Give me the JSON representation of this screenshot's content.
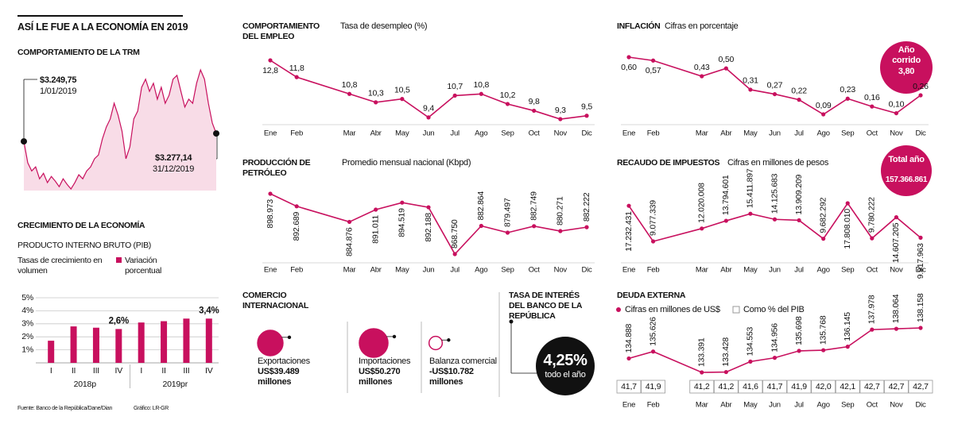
{
  "title": "ASÍ LE FUE A LA ECONOMÍA EN 2019",
  "source": "Fuente: Banco de la República/Dane/Dian",
  "credit": "Gráfico: LR-GR",
  "tasa": {
    "title": "TASA DE INTERÉS DEL BANCO DE LA REPÚBLICA",
    "value": "4,25%",
    "note": "todo el año"
  },
  "chart_data": [
    {
      "type": "area",
      "title": "COMPORTAMIENTO DE LA TRM",
      "color": "#c8105e",
      "fill": "#f8dce7",
      "x": [
        "1/01/2019",
        null,
        null,
        null,
        null,
        null,
        null,
        null,
        null,
        null,
        null,
        null,
        null,
        null,
        null,
        null,
        null,
        null,
        null,
        null,
        null,
        null,
        null,
        null,
        null,
        null,
        null,
        null,
        null,
        null,
        null,
        null,
        null,
        null,
        null,
        null,
        null,
        null,
        null,
        null,
        null,
        null,
        null,
        null,
        null,
        null,
        null,
        null,
        null,
        "31/12/2019"
      ],
      "values": [
        3249.75,
        3176,
        3148,
        3162,
        3121,
        3140,
        3108,
        3129,
        3113,
        3094,
        3121,
        3102,
        3086,
        3108,
        3135,
        3121,
        3148,
        3162,
        3190,
        3203,
        3258,
        3299,
        3327,
        3381,
        3340,
        3285,
        3190,
        3231,
        3327,
        3354,
        3436,
        3464,
        3422,
        3450,
        3395,
        3436,
        3381,
        3409,
        3464,
        3477,
        3422,
        3368,
        3395,
        3381,
        3450,
        3496,
        3464,
        3381,
        3313,
        3277.14
      ],
      "value_labels": [
        "$3.249,75",
        null,
        null,
        null,
        null,
        null,
        null,
        null,
        null,
        null,
        null,
        null,
        null,
        null,
        null,
        null,
        null,
        null,
        null,
        null,
        null,
        null,
        null,
        null,
        null,
        null,
        null,
        null,
        null,
        null,
        null,
        null,
        null,
        null,
        null,
        null,
        null,
        null,
        null,
        null,
        null,
        null,
        null,
        null,
        null,
        null,
        null,
        null,
        null,
        "$3.277,14"
      ]
    },
    {
      "type": "bar",
      "title": "CRECIMIENTO DE LA ECONOMÍA",
      "subtitle": "PRODUCTO INTERNO BRUTO (PIB)",
      "y_label": "Tasas de crecimiento en volumen",
      "categories": [
        "I",
        "II",
        "III",
        "IV",
        "I",
        "II",
        "III",
        "IV"
      ],
      "groups": [
        "2018p",
        "2019pr"
      ],
      "series": [
        {
          "name": "Variación porcentual",
          "color": "#c8105e",
          "values": [
            1.7,
            2.8,
            2.7,
            2.6,
            3.1,
            3.2,
            3.4,
            3.4
          ],
          "value_labels": [
            null,
            null,
            null,
            "2,6%",
            null,
            null,
            null,
            "3,4%"
          ]
        }
      ],
      "ylim": [
        0,
        5
      ],
      "yticks": [
        {
          "value": 1,
          "label": "1%"
        },
        {
          "value": 2,
          "label": "2%"
        },
        {
          "value": 3,
          "label": "3%"
        },
        {
          "value": 4,
          "label": "4%"
        },
        {
          "value": 5,
          "label": "5%"
        }
      ],
      "grid": true
    },
    {
      "type": "line",
      "title": "COMPORTAMIENTO DEL EMPLEO",
      "subtitle": "Tasa de desempleo (%)",
      "color": "#c8105e",
      "categories": [
        "Ene",
        "Feb",
        "Mar",
        "Abr",
        "May",
        "Jun",
        "Jul",
        "Ago",
        "Sep",
        "Oct",
        "Nov",
        "Dic"
      ],
      "values": [
        12.8,
        11.8,
        10.8,
        10.3,
        10.5,
        9.4,
        10.7,
        10.8,
        10.2,
        9.8,
        9.3,
        9.5
      ],
      "value_labels": [
        "12,8",
        "11,8",
        "10,8",
        "10,3",
        "10,5",
        "9,4",
        "10,7",
        "10,8",
        "10,2",
        "9,8",
        "9,3",
        "9,5"
      ]
    },
    {
      "type": "line",
      "title": "PRODUCCIÓN DE PETRÓLEO",
      "subtitle": "Promedio mensual nacional (Kbpd)",
      "color": "#c8105e",
      "categories": [
        "Ene",
        "Feb",
        "Mar",
        "Abr",
        "May",
        "Jun",
        "Jul",
        "Ago",
        "Sep",
        "Oct",
        "Nov",
        "Dic"
      ],
      "values": [
        898.973,
        892.689,
        884.876,
        891.011,
        894.519,
        892.188,
        868.75,
        882.864,
        879.497,
        882.749,
        880.271,
        882.222
      ],
      "value_labels": [
        "898.973",
        "892.689",
        "884.876",
        "891.011",
        "894.519",
        "892.188",
        "868.750",
        "882.864",
        "879.497",
        "882.749",
        "880.271",
        "882.222"
      ]
    },
    {
      "type": "line",
      "title": "INFLACIÓN",
      "subtitle": "Cifras en porcentaje",
      "badge_label": "Año corrido",
      "badge_value": "3,80",
      "color": "#c8105e",
      "categories": [
        "Ene",
        "Feb",
        "Mar",
        "Abr",
        "May",
        "Jun",
        "Jul",
        "Ago",
        "Sep",
        "Oct",
        "Nov",
        "Dic"
      ],
      "values": [
        0.6,
        0.57,
        0.43,
        0.5,
        0.31,
        0.27,
        0.22,
        0.09,
        0.23,
        0.16,
        0.1,
        0.26
      ],
      "value_labels": [
        "0,60",
        "0,57",
        "0,43",
        "0,50",
        "0,31",
        "0,27",
        "0,22",
        "0,09",
        "0,23",
        "0,16",
        "0,10",
        "0,26"
      ]
    },
    {
      "type": "line",
      "title": "RECAUDO DE IMPUESTOS",
      "subtitle": "Cifras en millones de pesos",
      "badge_label": "Total año",
      "badge_value": "157.366.861",
      "color": "#c8105e",
      "categories": [
        "Ene",
        "Feb",
        "Mar",
        "Abr",
        "May",
        "Jun",
        "Jul",
        "Ago",
        "Sep",
        "Oct",
        "Nov",
        "Dic"
      ],
      "values": [
        17232431,
        9077339,
        12020008,
        13794601,
        15411897,
        14125683,
        13909209,
        9682292,
        17808010,
        9780222,
        14607205,
        9917963
      ],
      "value_labels": [
        "17.232.431",
        "9.077.339",
        "12.020.008",
        "13.794.601",
        "15.411.897",
        "14.125.683",
        "13.909.209",
        "9.682.292",
        "17.808.010",
        "9.780.222",
        "14.607.205",
        "9.917.963"
      ]
    },
    {
      "type": "line",
      "title": "DEUDA EXTERNA",
      "categories": [
        "Ene",
        "Feb",
        "Mar",
        "Abr",
        "May",
        "Jun",
        "Jul",
        "Ago",
        "Sep",
        "Oct",
        "Nov",
        "Dic"
      ],
      "series": [
        {
          "name": "Cifras en millones de US$",
          "color": "#c8105e",
          "values": [
            134888,
            135626,
            133391,
            133428,
            134553,
            134956,
            135698,
            135768,
            136145,
            137978,
            138064,
            138158
          ],
          "value_labels": [
            "134.888",
            "135.626",
            "133.391",
            "133.428",
            "134.553",
            "134.956",
            "135.698",
            "135.768",
            "136.145",
            "137.978",
            "138.064",
            "138.158"
          ]
        },
        {
          "name": "Como % del PIB",
          "color": "#999999",
          "values": [
            41.7,
            41.9,
            41.2,
            41.2,
            41.6,
            41.7,
            41.9,
            42.0,
            42.1,
            42.7,
            42.7,
            42.7
          ],
          "value_labels": [
            "41,7",
            "41,9",
            "41,2",
            "41,2",
            "41,6",
            "41,7",
            "41,9",
            "42,0",
            "42,1",
            "42,7",
            "42,7",
            "42,7"
          ]
        }
      ]
    },
    {
      "type": "bubble",
      "title": "COMERCIO INTERNACIONAL",
      "color": "#c8105e",
      "categories": [
        "Exportaciones",
        "Importaciones",
        "Balanza comercial"
      ],
      "values": [
        39489,
        50270,
        -10782
      ],
      "value_labels": [
        "US$39.489 millones",
        "US$50.270 millones",
        "-US$10.782 millones"
      ]
    }
  ]
}
